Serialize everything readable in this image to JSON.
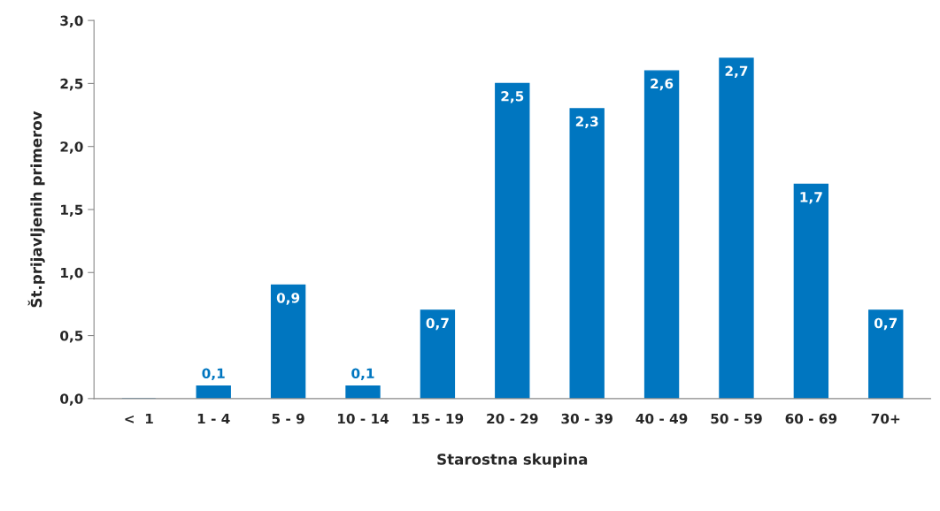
{
  "chart_data": {
    "type": "bar",
    "xlabel": "Starostna skupina",
    "ylabel": "Št.prijavljenih primerov",
    "categories": [
      "<  1",
      "1 - 4",
      "5 - 9",
      "10 - 14",
      "15 - 19",
      "20 - 29",
      "30 - 39",
      "40 - 49",
      "50 - 59",
      "60 - 69",
      "70+"
    ],
    "values": [
      0,
      0.1,
      0.9,
      0.1,
      0.7,
      2.5,
      2.3,
      2.6,
      2.7,
      1.7,
      0.7
    ],
    "value_labels": [
      null,
      "0,1",
      "0,9",
      "0,1",
      "0,7",
      "2,5",
      "2,3",
      "2,6",
      "2,7",
      "1,7",
      "0,7"
    ],
    "color": "#0076c0",
    "ylim": [
      0,
      3
    ],
    "yticks": [
      {
        "value": 0,
        "label": "0,0"
      },
      {
        "value": 0.5,
        "label": "0,5"
      },
      {
        "value": 1,
        "label": "1,0"
      },
      {
        "value": 1.5,
        "label": "1,5"
      },
      {
        "value": 2,
        "label": "2,0"
      },
      {
        "value": 2.5,
        "label": "2,5"
      },
      {
        "value": 3,
        "label": "3,0"
      }
    ],
    "grid": false,
    "legend": false
  }
}
